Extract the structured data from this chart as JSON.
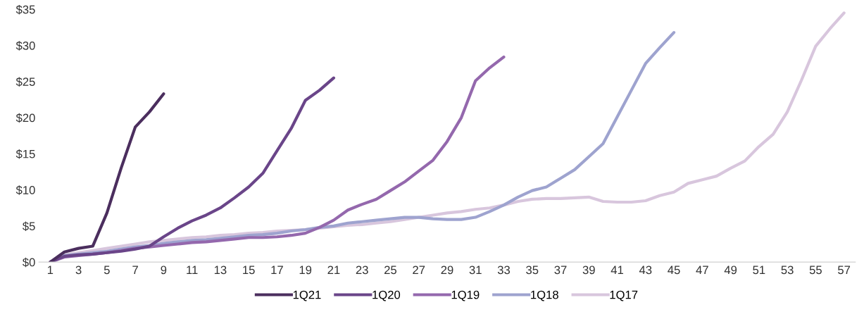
{
  "chart_data": {
    "type": "line",
    "xlim": [
      0.2,
      57.8
    ],
    "xticks": [
      1,
      3,
      5,
      7,
      9,
      11,
      13,
      15,
      17,
      19,
      21,
      23,
      25,
      27,
      29,
      31,
      33,
      35,
      37,
      39,
      41,
      43,
      45,
      47,
      49,
      51,
      53,
      55,
      57
    ],
    "ylim": [
      0,
      35
    ],
    "yticks": [
      {
        "value": 0,
        "label": "$0"
      },
      {
        "value": 5,
        "label": "$5"
      },
      {
        "value": 10,
        "label": "$10"
      },
      {
        "value": 15,
        "label": "$15"
      },
      {
        "value": 20,
        "label": "$20"
      },
      {
        "value": 25,
        "label": "$25"
      },
      {
        "value": 30,
        "label": "$30"
      },
      {
        "value": 35,
        "label": "$35"
      }
    ],
    "grid": false,
    "legend": "bottom",
    "marker": "none",
    "line_style": "solid",
    "series": [
      {
        "name": "1Q17",
        "color": "#d8c6dd",
        "x": [
          1,
          2,
          3,
          4,
          5,
          6,
          7,
          8,
          9,
          10,
          11,
          12,
          13,
          14,
          15,
          16,
          17,
          18,
          19,
          20,
          21,
          22,
          23,
          24,
          25,
          26,
          27,
          28,
          29,
          30,
          31,
          32,
          33,
          34,
          35,
          36,
          37,
          38,
          39,
          40,
          41,
          42,
          43,
          44,
          45,
          46,
          47,
          48,
          49,
          50,
          51,
          52,
          53,
          54,
          55,
          56,
          57
        ],
        "values": [
          0,
          1.0,
          1.3,
          1.6,
          1.9,
          2.2,
          2.5,
          2.8,
          3.0,
          3.2,
          3.4,
          3.5,
          3.7,
          3.8,
          4.0,
          4.1,
          4.3,
          4.4,
          4.5,
          4.7,
          4.9,
          5.1,
          5.2,
          5.4,
          5.6,
          5.9,
          6.2,
          6.5,
          6.8,
          7.0,
          7.3,
          7.5,
          7.9,
          8.4,
          8.7,
          8.8,
          8.8,
          8.9,
          9.0,
          8.4,
          8.3,
          8.3,
          8.5,
          9.2,
          9.7,
          10.9,
          11.4,
          11.9,
          13.0,
          14.0,
          16.0,
          17.7,
          20.8,
          25.2,
          29.9,
          32.3,
          34.5
        ]
      },
      {
        "name": "1Q18",
        "color": "#9ea3cf",
        "x": [
          1,
          2,
          3,
          4,
          5,
          6,
          7,
          8,
          9,
          10,
          11,
          12,
          13,
          14,
          15,
          16,
          17,
          18,
          19,
          20,
          21,
          22,
          23,
          24,
          25,
          26,
          27,
          28,
          29,
          30,
          31,
          32,
          33,
          34,
          35,
          36,
          37,
          38,
          39,
          40,
          41,
          42,
          43,
          44,
          45
        ],
        "values": [
          0,
          0.9,
          1.1,
          1.3,
          1.5,
          1.8,
          2.1,
          2.3,
          2.6,
          2.8,
          3.0,
          3.1,
          3.3,
          3.5,
          3.7,
          3.8,
          4.0,
          4.3,
          4.5,
          4.8,
          5.0,
          5.4,
          5.6,
          5.8,
          6.0,
          6.2,
          6.2,
          6.0,
          5.9,
          5.9,
          6.2,
          7.0,
          7.9,
          9.0,
          9.9,
          10.4,
          11.6,
          12.8,
          14.6,
          16.4,
          20.1,
          23.8,
          27.5,
          29.7,
          31.8
        ]
      },
      {
        "name": "1Q19",
        "color": "#9468ad",
        "x": [
          1,
          2,
          3,
          4,
          5,
          6,
          7,
          8,
          9,
          10,
          11,
          12,
          13,
          14,
          15,
          16,
          17,
          18,
          19,
          20,
          21,
          22,
          23,
          24,
          25,
          26,
          27,
          28,
          29,
          30,
          31,
          32,
          33
        ],
        "values": [
          0,
          0.7,
          0.9,
          1.1,
          1.3,
          1.6,
          1.9,
          2.1,
          2.3,
          2.5,
          2.7,
          2.8,
          3.0,
          3.2,
          3.4,
          3.4,
          3.5,
          3.7,
          4.0,
          4.8,
          5.8,
          7.2,
          8.0,
          8.7,
          9.9,
          11.1,
          12.6,
          14.1,
          16.7,
          20.0,
          25.1,
          26.9,
          28.4
        ]
      },
      {
        "name": "1Q20",
        "color": "#6a4589",
        "x": [
          1,
          2,
          3,
          4,
          5,
          6,
          7,
          8,
          9,
          10,
          11,
          12,
          13,
          14,
          15,
          16,
          17,
          18,
          19,
          20,
          21
        ],
        "values": [
          0,
          0.8,
          1.0,
          1.1,
          1.3,
          1.5,
          1.8,
          2.2,
          3.5,
          4.7,
          5.7,
          6.5,
          7.5,
          8.9,
          10.4,
          12.3,
          15.4,
          18.5,
          22.4,
          23.8,
          25.5
        ]
      },
      {
        "name": "1Q21",
        "color": "#4b2e5e",
        "x": [
          1,
          2,
          3,
          4,
          5,
          6,
          7,
          8,
          9
        ],
        "values": [
          0,
          1.4,
          1.9,
          2.2,
          6.8,
          13.0,
          18.7,
          20.8,
          23.3
        ]
      }
    ]
  }
}
